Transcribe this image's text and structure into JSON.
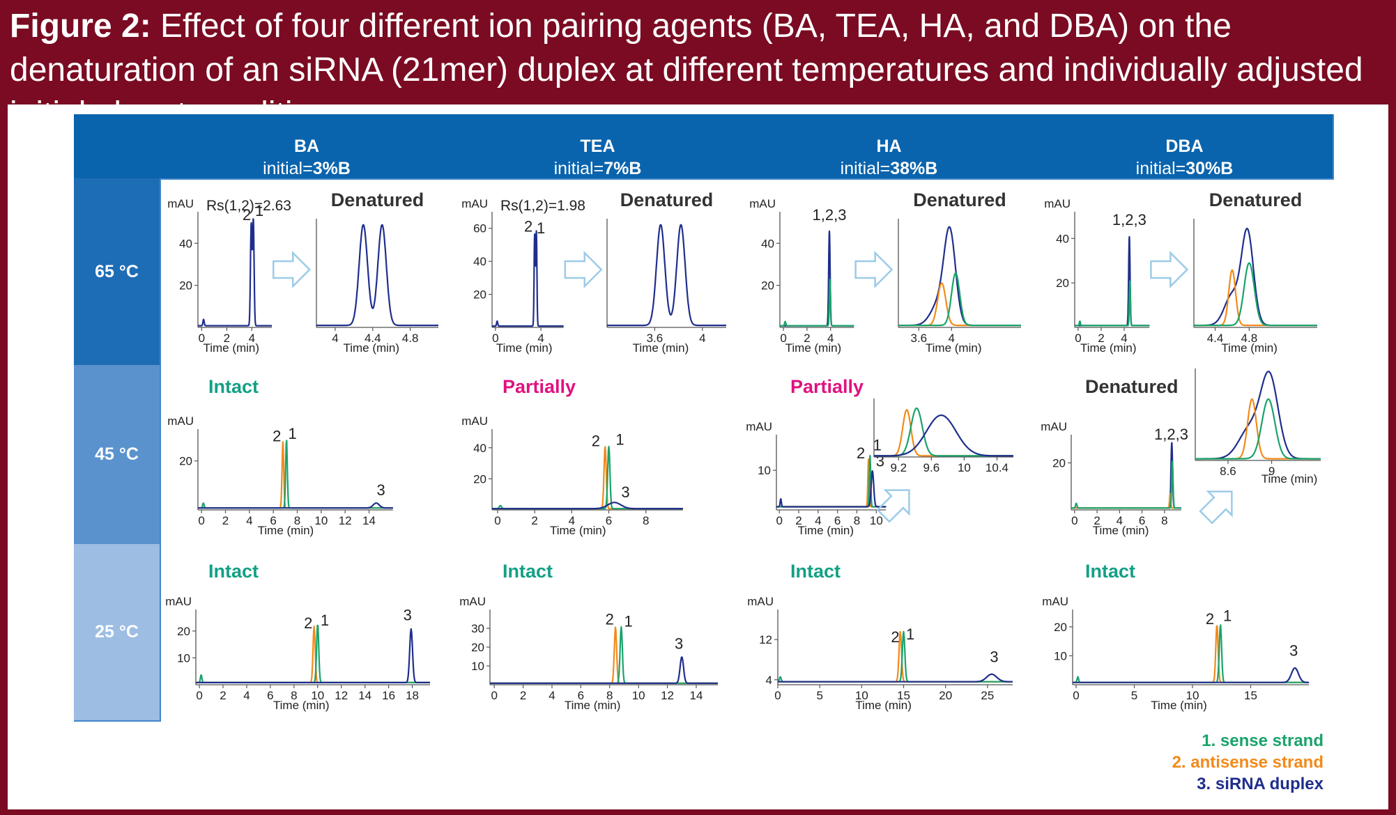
{
  "figure": {
    "label": "Figure 2:",
    "caption": "Effect of four different ion pairing agents (BA, TEA, HA, and DBA) on the denaturation of an siRNA (21mer) duplex at different temperatures and individually adjusted initial eluent conditions."
  },
  "columns": [
    {
      "name": "BA",
      "initial_prefix": "initial=",
      "initial_value": "3%B"
    },
    {
      "name": "TEA",
      "initial_prefix": "initial=",
      "initial_value": "7%B"
    },
    {
      "name": "HA",
      "initial_prefix": "initial=",
      "initial_value": "38%B"
    },
    {
      "name": "DBA",
      "initial_prefix": "initial=",
      "initial_value": "30%B"
    }
  ],
  "rows": [
    "65 °C",
    "45 °C",
    "25 °C"
  ],
  "legend": [
    {
      "text": "1.  sense strand",
      "color": "#1aa36a"
    },
    {
      "text": "2.  antisense strand",
      "color": "#f28a1b"
    },
    {
      "text": "3.  siRNA duplex",
      "color": "#1f2e8c"
    }
  ],
  "colors": {
    "sense": "#1aa36a",
    "antisense": "#f28a1b",
    "duplex": "#1f2e8c",
    "intact": "#13a085",
    "partially": "#e0117f",
    "denatured": "#333333",
    "arrow": "#9ccbe8"
  },
  "chart_data": [
    {
      "type": "line",
      "temp": "65 °C",
      "agent": "BA",
      "status": "Denatured",
      "rs": "Rs(1,2)=2.63",
      "ylabel": "mAU",
      "xlabel": "Time (min)",
      "xlim": [
        -0.3,
        5.6
      ],
      "ylim": [
        0,
        55
      ],
      "xticks": [
        "0",
        "2",
        "4"
      ],
      "yticks": [
        "20",
        "40"
      ],
      "peaks": [
        {
          "series": "duplex",
          "peaks": [
            [
              3.95,
              48,
              0.06
            ],
            [
              4.12,
              50,
              0.06
            ],
            [
              0.15,
              3,
              0.05
            ]
          ]
        }
      ],
      "peak_labels": [
        {
          "text": "2",
          "x": 3.6,
          "y": 51
        },
        {
          "text": "1",
          "x": 4.6,
          "y": 53
        }
      ],
      "inset": {
        "xlim": [
          3.8,
          5.1
        ],
        "xticks": [
          "4",
          "4.4",
          "4.8"
        ],
        "peaks": [
          {
            "series": "duplex",
            "peaks": [
              [
                4.3,
                1,
                0.045
              ],
              [
                4.5,
                1,
                0.045
              ]
            ]
          }
        ]
      }
    },
    {
      "type": "line",
      "temp": "65 °C",
      "agent": "TEA",
      "status": "Denatured",
      "rs": "Rs(1,2)=1.98",
      "ylabel": "mAU",
      "xlabel": "Time (min)",
      "xlim": [
        -0.3,
        6
      ],
      "ylim": [
        0,
        70
      ],
      "xticks": [
        "0",
        "4"
      ],
      "yticks": [
        "20",
        "40",
        "60"
      ],
      "peaks": [
        {
          "series": "duplex",
          "peaks": [
            [
              3.45,
              55,
              0.05
            ],
            [
              3.6,
              57,
              0.05
            ],
            [
              0.15,
              3,
              0.05
            ]
          ]
        }
      ],
      "peak_labels": [
        {
          "text": "2",
          "x": 2.9,
          "y": 58
        },
        {
          "text": "1",
          "x": 4.0,
          "y": 57
        }
      ],
      "inset": {
        "xlim": [
          3.2,
          4.2
        ],
        "xticks": [
          "3.6",
          "4"
        ],
        "peaks": [
          {
            "series": "duplex",
            "peaks": [
              [
                3.65,
                1,
                0.035
              ],
              [
                3.82,
                1,
                0.035
              ]
            ]
          }
        ]
      }
    },
    {
      "type": "line",
      "temp": "65 °C",
      "agent": "HA",
      "status": "Denatured",
      "ylabel": "mAU",
      "xlabel": "Time (min)",
      "xlim": [
        -0.3,
        6
      ],
      "ylim": [
        0,
        55
      ],
      "xticks": [
        "0",
        "2",
        "4"
      ],
      "yticks": [
        "20",
        "40"
      ],
      "peaks": [
        {
          "series": "duplex",
          "peaks": [
            [
              3.9,
              45,
              0.06
            ]
          ]
        },
        {
          "series": "sense",
          "peaks": [
            [
              3.95,
              22,
              0.05
            ],
            [
              0.15,
              2,
              0.05
            ]
          ]
        }
      ],
      "peak_labels": [
        {
          "text": "1,2,3",
          "x": 3.9,
          "y": 51
        }
      ],
      "inset": {
        "xlim": [
          3.35,
          4.85
        ],
        "xticks": [
          "3.6",
          "4"
        ],
        "peaks": [
          {
            "series": "duplex",
            "peaks": [
              [
                3.98,
                0.88,
                0.07
              ],
              [
                3.85,
                0.22,
                0.1
              ]
            ]
          },
          {
            "series": "antisense",
            "peaks": [
              [
                3.88,
                0.42,
                0.05
              ]
            ]
          },
          {
            "series": "sense",
            "peaks": [
              [
                4.05,
                0.52,
                0.05
              ]
            ]
          }
        ]
      }
    },
    {
      "type": "line",
      "temp": "65 °C",
      "agent": "DBA",
      "status": "Denatured",
      "ylabel": "mAU",
      "xlabel": "Time (min)",
      "xlim": [
        -0.3,
        6.2
      ],
      "ylim": [
        0,
        52
      ],
      "xticks": [
        "0",
        "2",
        "4"
      ],
      "yticks": [
        "20",
        "40"
      ],
      "peaks": [
        {
          "series": "duplex",
          "peaks": [
            [
              4.45,
              40,
              0.06
            ]
          ]
        },
        {
          "series": "sense",
          "peaks": [
            [
              4.5,
              20,
              0.05
            ],
            [
              0.15,
              2,
              0.05
            ]
          ]
        }
      ],
      "peak_labels": [
        {
          "text": "1,2,3",
          "x": 4.45,
          "y": 46
        }
      ],
      "inset": {
        "xlim": [
          4.15,
          5.6
        ],
        "xticks": [
          "4.4",
          "4.8"
        ],
        "peaks": [
          {
            "series": "duplex",
            "peaks": [
              [
                4.78,
                0.92,
                0.07
              ],
              [
                4.6,
                0.3,
                0.09
              ]
            ]
          },
          {
            "series": "antisense",
            "peaks": [
              [
                4.6,
                0.55,
                0.04
              ]
            ]
          },
          {
            "series": "sense",
            "peaks": [
              [
                4.8,
                0.62,
                0.06
              ]
            ]
          }
        ]
      }
    },
    {
      "type": "line",
      "temp": "45 °C",
      "agent": "BA",
      "status": "Intact",
      "ylabel": "mAU",
      "xlabel": "Time (min)",
      "xlim": [
        -0.3,
        16
      ],
      "ylim": [
        0,
        33
      ],
      "xticks": [
        "0",
        "2",
        "4",
        "6",
        "8",
        "10",
        "12",
        "14"
      ],
      "yticks": [
        "20"
      ],
      "peaks": [
        {
          "series": "antisense",
          "peaks": [
            [
              6.8,
              27,
              0.07
            ]
          ]
        },
        {
          "series": "sense",
          "peaks": [
            [
              7.1,
              28,
              0.07
            ],
            [
              0.15,
              2,
              0.06
            ]
          ]
        },
        {
          "series": "duplex",
          "peaks": [
            [
              14.6,
              2,
              0.25
            ]
          ]
        }
      ],
      "peak_labels": [
        {
          "text": "2",
          "x": 6.3,
          "y": 28
        },
        {
          "text": "1",
          "x": 7.6,
          "y": 29
        },
        {
          "text": "3",
          "x": 15.0,
          "y": 6
        }
      ]
    },
    {
      "type": "line",
      "temp": "45 °C",
      "agent": "TEA",
      "status": "Partially",
      "ylabel": "mAU",
      "xlabel": "Time (min)",
      "xlim": [
        -0.3,
        10
      ],
      "ylim": [
        0,
        52
      ],
      "xticks": [
        "0",
        "2",
        "4",
        "6",
        "8"
      ],
      "yticks": [
        "20",
        "40"
      ],
      "peaks": [
        {
          "series": "antisense",
          "peaks": [
            [
              5.8,
              40,
              0.06
            ]
          ]
        },
        {
          "series": "sense",
          "peaks": [
            [
              6.0,
              40,
              0.06
            ],
            [
              0.15,
              2,
              0.06
            ]
          ]
        },
        {
          "series": "duplex",
          "peaks": [
            [
              6.3,
              4,
              0.35
            ]
          ]
        }
      ],
      "peak_labels": [
        {
          "text": "2",
          "x": 5.3,
          "y": 41
        },
        {
          "text": "1",
          "x": 6.6,
          "y": 42
        },
        {
          "text": "3",
          "x": 6.9,
          "y": 8
        }
      ]
    },
    {
      "type": "line",
      "temp": "45 °C",
      "agent": "HA",
      "status": "Partially",
      "ylabel": "mAU",
      "xlabel": "Time (min)",
      "xlim": [
        -0.3,
        11
      ],
      "ylim": [
        0,
        19
      ],
      "xticks": [
        "0",
        "2",
        "4",
        "6",
        "8",
        "10"
      ],
      "yticks": [
        "10"
      ],
      "peaks": [
        {
          "series": "antisense",
          "peaks": [
            [
              9.2,
              12,
              0.07
            ]
          ]
        },
        {
          "series": "sense",
          "peaks": [
            [
              9.35,
              13,
              0.07
            ]
          ]
        },
        {
          "series": "duplex",
          "peaks": [
            [
              9.6,
              9,
              0.13
            ],
            [
              0.15,
              2,
              0.06
            ]
          ]
        }
      ],
      "peak_labels": [
        {
          "text": "2",
          "x": 8.4,
          "y": 13
        },
        {
          "text": "1",
          "x": 10.1,
          "y": 15
        },
        {
          "text": "3",
          "x": 10.4,
          "y": 11
        }
      ],
      "inset": {
        "xlim": [
          8.9,
          10.6
        ],
        "xticks": [
          "9.2",
          "9.6",
          "10",
          "10.4"
        ],
        "peaks": [
          {
            "series": "antisense",
            "peaks": [
              [
                9.3,
                0.85,
                0.05
              ]
            ]
          },
          {
            "series": "sense",
            "peaks": [
              [
                9.42,
                0.88,
                0.07
              ]
            ]
          },
          {
            "series": "duplex",
            "peaks": [
              [
                9.72,
                0.75,
                0.18
              ]
            ]
          }
        ]
      }
    },
    {
      "type": "line",
      "temp": "45 °C",
      "agent": "DBA",
      "status": "Denatured",
      "ylabel": "mAU",
      "xlabel": "Time (min)",
      "xlim": [
        -0.3,
        9.5
      ],
      "ylim": [
        0,
        32
      ],
      "xticks": [
        "0",
        "2",
        "4",
        "6",
        "8"
      ],
      "yticks": [
        "20"
      ],
      "peaks": [
        {
          "series": "duplex",
          "peaks": [
            [
              8.65,
              28,
              0.07
            ]
          ]
        },
        {
          "series": "antisense",
          "peaks": [
            [
              8.5,
              6,
              0.05
            ]
          ]
        },
        {
          "series": "sense",
          "peaks": [
            [
              8.7,
              20,
              0.06
            ],
            [
              0.15,
              2,
              0.06
            ]
          ]
        }
      ],
      "peak_labels": [
        {
          "text": "1,2,3",
          "x": 8.6,
          "y": 30
        }
      ],
      "inset": {
        "xlim": [
          8.3,
          9.45
        ],
        "xticks": [
          "8.6",
          "9"
        ],
        "peaks": [
          {
            "series": "duplex",
            "peaks": [
              [
                8.98,
                0.95,
                0.08
              ],
              [
                8.8,
                0.35,
                0.1
              ]
            ]
          },
          {
            "series": "antisense",
            "peaks": [
              [
                8.82,
                0.7,
                0.04
              ]
            ]
          },
          {
            "series": "sense",
            "peaks": [
              [
                8.97,
                0.7,
                0.06
              ]
            ]
          }
        ]
      }
    },
    {
      "type": "line",
      "temp": "25 °C",
      "agent": "BA",
      "status": "Intact",
      "ylabel": "mAU",
      "xlabel": "Time (min)",
      "xlim": [
        -0.3,
        19.5
      ],
      "ylim": [
        0,
        28
      ],
      "xticks": [
        "0",
        "2",
        "4",
        "6",
        "8",
        "10",
        "12",
        "14",
        "16",
        "18"
      ],
      "yticks": [
        "10",
        "20"
      ],
      "peaks": [
        {
          "series": "antisense",
          "peaks": [
            [
              9.7,
              21,
              0.09
            ]
          ]
        },
        {
          "series": "sense",
          "peaks": [
            [
              10.0,
              22,
              0.09
            ],
            [
              0.15,
              3,
              0.06
            ]
          ]
        },
        {
          "series": "duplex",
          "peaks": [
            [
              17.9,
              20,
              0.12
            ]
          ]
        }
      ],
      "peak_labels": [
        {
          "text": "2",
          "x": 9.2,
          "y": 21
        },
        {
          "text": "1",
          "x": 10.6,
          "y": 22
        },
        {
          "text": "3",
          "x": 17.6,
          "y": 24
        }
      ]
    },
    {
      "type": "line",
      "temp": "25 °C",
      "agent": "TEA",
      "status": "Intact",
      "ylabel": "mAU",
      "xlabel": "Time (min)",
      "xlim": [
        -0.3,
        15.5
      ],
      "ylim": [
        0,
        40
      ],
      "xticks": [
        "0",
        "2",
        "4",
        "6",
        "8",
        "10",
        "12",
        "14"
      ],
      "yticks": [
        "10",
        "20",
        "30"
      ],
      "peaks": [
        {
          "series": "antisense",
          "peaks": [
            [
              8.4,
              30,
              0.08
            ]
          ]
        },
        {
          "series": "sense",
          "peaks": [
            [
              8.8,
              30,
              0.08
            ]
          ]
        },
        {
          "series": "duplex",
          "peaks": [
            [
              13.0,
              14,
              0.12
            ]
          ]
        }
      ],
      "peak_labels": [
        {
          "text": "2",
          "x": 8.0,
          "y": 32
        },
        {
          "text": "1",
          "x": 9.3,
          "y": 31
        },
        {
          "text": "3",
          "x": 12.8,
          "y": 19
        }
      ]
    },
    {
      "type": "line",
      "temp": "25 °C",
      "agent": "HA",
      "status": "Intact",
      "ylabel": "mAU",
      "xlabel": "Time (min)",
      "xlim": [
        0,
        28
      ],
      "ylim": [
        3,
        18
      ],
      "xticks": [
        "0",
        "5",
        "10",
        "15",
        "20",
        "25"
      ],
      "yticks": [
        "4",
        "12"
      ],
      "peaks": [
        {
          "series": "antisense",
          "peaks": [
            [
              14.6,
              10,
              0.15
            ]
          ]
        },
        {
          "series": "sense",
          "peaks": [
            [
              15.0,
              10,
              0.15
            ],
            [
              0.3,
              1,
              0.1
            ]
          ]
        },
        {
          "series": "duplex",
          "peaks": [
            [
              25.5,
              1.5,
              0.6
            ]
          ]
        }
      ],
      "peak_labels": [
        {
          "text": "2",
          "x": 14.0,
          "y": 11.5
        },
        {
          "text": "1",
          "x": 15.8,
          "y": 12
        },
        {
          "text": "3",
          "x": 25.8,
          "y": 7.5
        }
      ]
    },
    {
      "type": "line",
      "temp": "25 °C",
      "agent": "DBA",
      "status": "Intact",
      "ylabel": "mAU",
      "xlabel": "Time (min)",
      "xlim": [
        -0.3,
        20
      ],
      "ylim": [
        0,
        26
      ],
      "xticks": [
        "0",
        "5",
        "10",
        "15"
      ],
      "yticks": [
        "10",
        "20"
      ],
      "peaks": [
        {
          "series": "antisense",
          "peaks": [
            [
              12.1,
              20,
              0.1
            ]
          ]
        },
        {
          "series": "sense",
          "peaks": [
            [
              12.4,
              20,
              0.1
            ],
            [
              0.15,
              2,
              0.06
            ]
          ]
        },
        {
          "series": "duplex",
          "peaks": [
            [
              18.8,
              5,
              0.3
            ]
          ]
        }
      ],
      "peak_labels": [
        {
          "text": "2",
          "x": 11.5,
          "y": 21
        },
        {
          "text": "1",
          "x": 13.0,
          "y": 22
        },
        {
          "text": "3",
          "x": 18.7,
          "y": 10
        }
      ]
    }
  ]
}
